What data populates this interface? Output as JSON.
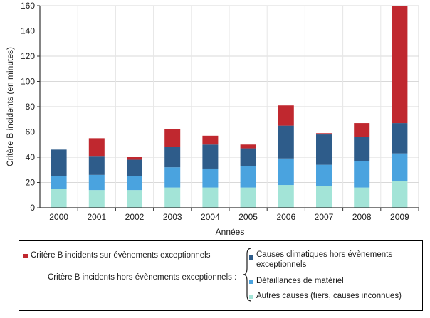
{
  "chart_data": {
    "type": "bar",
    "stacked": true,
    "categories": [
      "2000",
      "2001",
      "2002",
      "2003",
      "2004",
      "2005",
      "2006",
      "2007",
      "2008",
      "2009"
    ],
    "series": [
      {
        "name": "Autres causes (tiers, causes inconnues)",
        "color": "#a3e4d7",
        "values": [
          15,
          14,
          14,
          16,
          16,
          16,
          18,
          17,
          16,
          21
        ]
      },
      {
        "name": "Défaillances de matériel",
        "color": "#4aa3df",
        "values": [
          10,
          12,
          11,
          16,
          15,
          17,
          21,
          17,
          21,
          22
        ]
      },
      {
        "name": "Causes climatiques hors évènements exceptionnels",
        "color": "#2e5c8a",
        "values": [
          21,
          15,
          13,
          16,
          19,
          14,
          26,
          24,
          19,
          24
        ]
      },
      {
        "name": "Critère B incidents sur évènements exceptionnels",
        "color": "#c0282f",
        "values": [
          0,
          14,
          2,
          14,
          7,
          3,
          16,
          1,
          11,
          93
        ]
      }
    ],
    "ylim": [
      0,
      160
    ],
    "yticks": [
      "0",
      "20",
      "40",
      "60",
      "80",
      "100",
      "120",
      "140",
      "160"
    ],
    "xlabel": "Années",
    "ylabel": "Critère B incidents (en minutes)",
    "grid": true
  },
  "legend": {
    "exceptional": "Critère B incidents sur évènements exceptionnels",
    "hors_label": "Critère B incidents hors évènements exceptionnels :",
    "climatic_line1": "Causes climatiques hors évènements",
    "climatic_line2": "exceptionnels",
    "materiel": "Défaillances de matériel",
    "autres": "Autres causes (tiers, causes inconnues)"
  }
}
